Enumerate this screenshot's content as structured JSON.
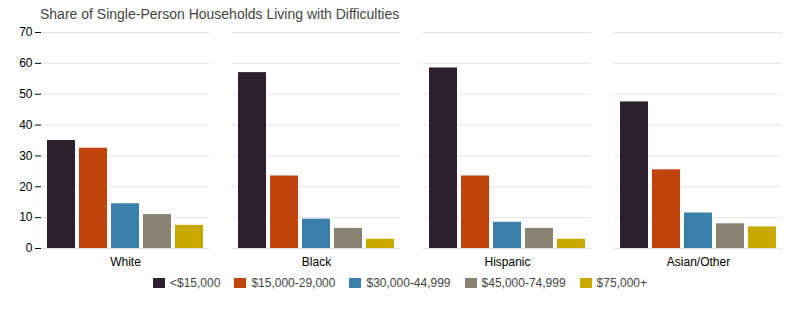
{
  "chart_data": {
    "type": "bar",
    "title": "Share of Single-Person Households Living with Difficulties",
    "categories": [
      "White",
      "Black",
      "Hispanic",
      "Asian/Other"
    ],
    "series": [
      {
        "name": "<$15,000",
        "color": "#2d1f2e",
        "values": [
          35,
          57,
          58.5,
          47.5
        ]
      },
      {
        "name": "$15,000-29,000",
        "color": "#c0440c",
        "values": [
          32.5,
          23.5,
          23.5,
          25.5
        ]
      },
      {
        "name": "$30,000-44,999",
        "color": "#3a7faa",
        "values": [
          14.5,
          9.5,
          8.5,
          11.5
        ]
      },
      {
        "name": "$45,000-74,999",
        "color": "#8a8272",
        "values": [
          11,
          6.5,
          6.5,
          8
        ]
      },
      {
        "name": "$75,000+",
        "color": "#c8a900",
        "values": [
          7.5,
          3,
          3,
          7
        ]
      }
    ],
    "ylim": [
      0,
      70
    ],
    "yticks": [
      0,
      10,
      20,
      30,
      40,
      50,
      60,
      70
    ],
    "grid": true,
    "legend": "bottom"
  }
}
